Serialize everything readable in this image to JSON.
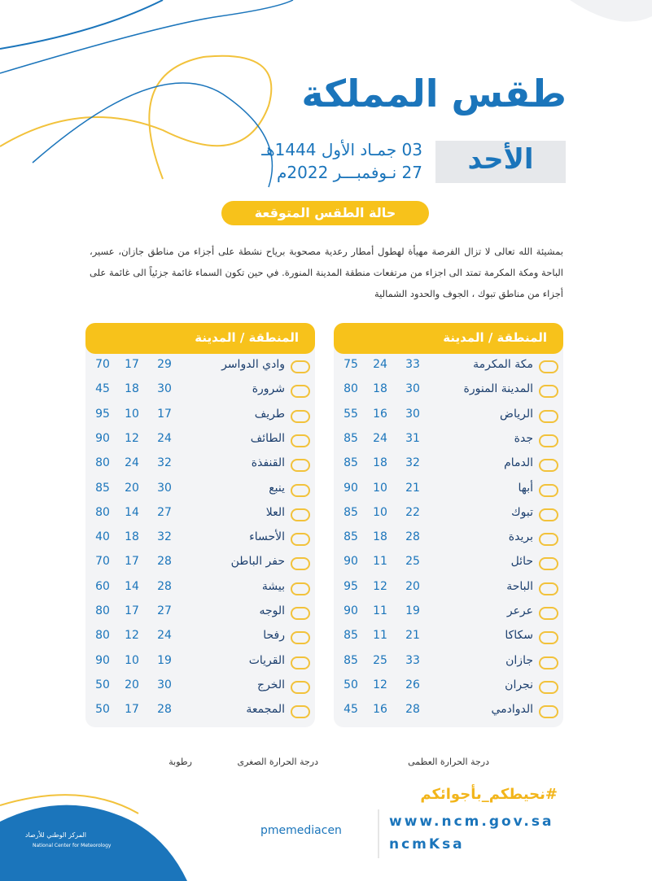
{
  "header": {
    "title": "طقس المملكة",
    "day": "الأحد",
    "hijri_date": "03 جمـاد الأول 1444هـ",
    "gregorian_date": "27 نـوفمبـــر 2022م",
    "badge": "حالة الطقس المتوقعة"
  },
  "summary": "بمشيئة الله تعالى لا تزال الفرصة مهيأة لهطول أمطار رعدية مصحوبة برياح نشطة على أجزاء من مناطق جازان، عسير، الباحة ومكة المكرمة تمتد الى اجزاء من مرتفعات منطقة المدينة المنورة. في حين تكون السماء غائمة جزئياً الى غائمة على أجزاء من مناطق تبوك ، الجوف والحدود الشمالية",
  "tables": [
    {
      "header": "المنطقة / المدينة",
      "rows": [
        [
          "مكة المكرمة",
          33,
          24,
          75
        ],
        [
          "المدينة المنورة",
          30,
          18,
          80
        ],
        [
          "الرياض",
          30,
          16,
          55
        ],
        [
          "جدة",
          31,
          24,
          85
        ],
        [
          "الدمام",
          32,
          18,
          85
        ],
        [
          "أبها",
          21,
          10,
          90
        ],
        [
          "تبوك",
          22,
          10,
          85
        ],
        [
          "بريدة",
          28,
          18,
          85
        ],
        [
          "حائل",
          25,
          11,
          90
        ],
        [
          "الباحة",
          20,
          12,
          95
        ],
        [
          "عرعر",
          19,
          11,
          90
        ],
        [
          "سكاكا",
          21,
          11,
          85
        ],
        [
          "جازان",
          33,
          25,
          85
        ],
        [
          "نجران",
          26,
          12,
          50
        ],
        [
          "الدوادمي",
          28,
          16,
          45
        ]
      ]
    },
    {
      "header": "المنطقة / المدينة",
      "rows": [
        [
          "وادي الدواسر",
          29,
          17,
          70
        ],
        [
          "شرورة",
          30,
          18,
          45
        ],
        [
          "طريف",
          17,
          10,
          95
        ],
        [
          "الطائف",
          24,
          12,
          90
        ],
        [
          "القنفذة",
          32,
          24,
          80
        ],
        [
          "ينبع",
          30,
          20,
          85
        ],
        [
          "العلا",
          27,
          14,
          80
        ],
        [
          "الأحساء",
          32,
          18,
          40
        ],
        [
          "حفر الباطن",
          28,
          17,
          70
        ],
        [
          "بيشة",
          28,
          14,
          60
        ],
        [
          "الوجه",
          27,
          17,
          80
        ],
        [
          "رفحا",
          24,
          12,
          80
        ],
        [
          "القريات",
          19,
          10,
          90
        ],
        [
          "الخرج",
          30,
          20,
          50
        ],
        [
          "المجمعة",
          28,
          17,
          50
        ]
      ]
    }
  ],
  "legend": [
    "درجة الحرارة العظمى",
    "درجة الحرارة الصغرى",
    "رطوبة"
  ],
  "footer": {
    "hashtag": "#نحيطكم_بأجوائكم",
    "website": "www.ncm.gov.sa",
    "social": "ncmKsa",
    "twitter": "pmemediacen",
    "logo_ar": "المركز الوطني للأرصاد",
    "logo_en": "National Center for Meteorology"
  }
}
